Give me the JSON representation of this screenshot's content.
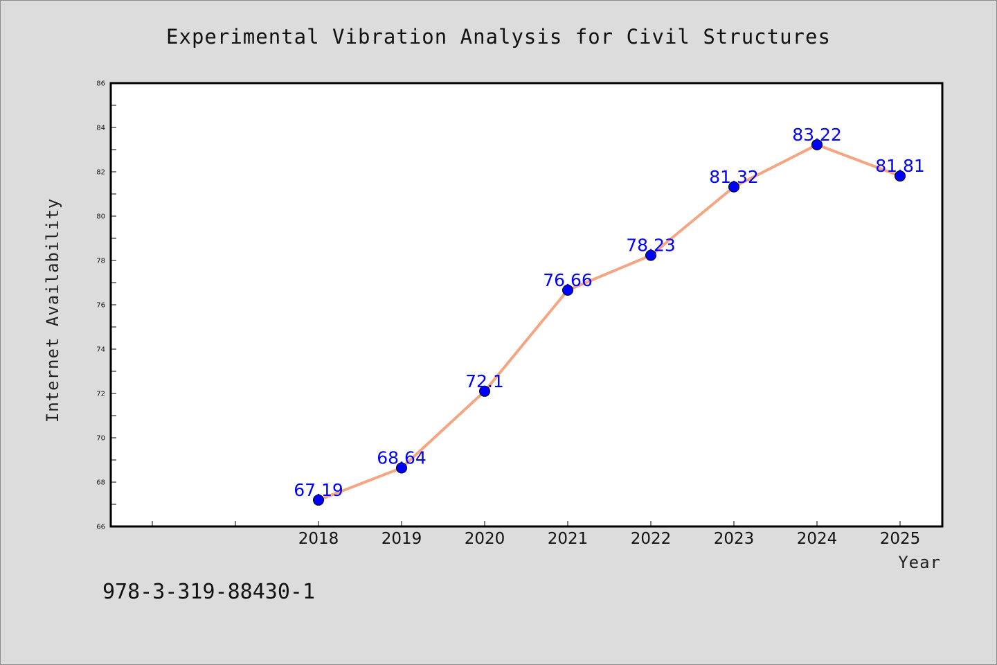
{
  "chart_data": {
    "type": "line",
    "title": "Experimental Vibration Analysis for Civil Structures",
    "xlabel": "Year",
    "ylabel": "Internet Availability",
    "categories": [
      "2018",
      "2019",
      "2020",
      "2021",
      "2022",
      "2023",
      "2024",
      "2025"
    ],
    "values": [
      67.19,
      68.64,
      72.1,
      76.66,
      78.23,
      81.32,
      83.22,
      81.81
    ],
    "data_labels": [
      "67.19",
      "68.64",
      "72.1",
      "76.66",
      "78.23",
      "81.32",
      "83.22",
      "81.81"
    ],
    "ylim": [
      66,
      86
    ],
    "yticks": [
      "66",
      "68",
      "70",
      "72",
      "74",
      "76",
      "78",
      "80",
      "82",
      "84",
      "86"
    ],
    "grid": false,
    "colors": {
      "line": "#f4a582",
      "marker": "#0000ff",
      "label": "#0000ff"
    }
  },
  "footer": {
    "isbn": "978-3-319-88430-1"
  }
}
